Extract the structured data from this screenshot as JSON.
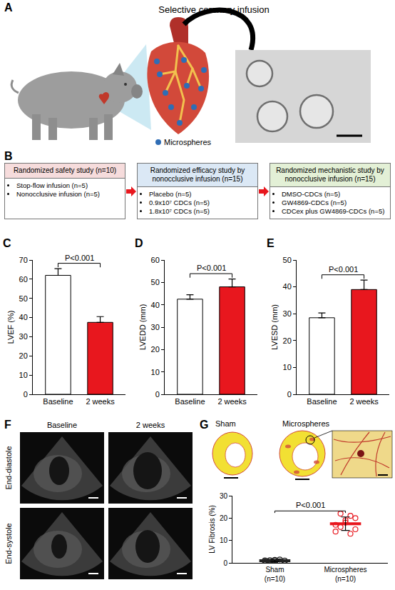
{
  "panels": {
    "A": {
      "label": "A",
      "title": "Selective coronary infusion",
      "legend": "Microspheres"
    },
    "B": {
      "label": "B",
      "boxes": [
        {
          "title": "Randomized safety study (n=10)",
          "items": [
            "Stop-flow infusion (n=5)",
            "Nonocclusive infusion (n=5)"
          ]
        },
        {
          "title": "Randomized efficacy study by nonocclusive infusion (n=15)",
          "items": [
            "Placebo (n=5)",
            "0.9x10⁷ CDCs (n=5)",
            "1.8x10⁷ CDCs (n=5)"
          ]
        },
        {
          "title": "Randomized mechanistic study by nonocclusive infusion (n=15)",
          "items": [
            "DMSO-CDCs (n=5)",
            "GW4869-CDCs (n=5)",
            "CDCex plus GW4869-CDCs (n=5)"
          ]
        }
      ]
    },
    "F": {
      "label": "F",
      "columns": [
        "Baseline",
        "2 weeks"
      ],
      "rows": [
        "End-diastole",
        "End-systole"
      ]
    },
    "G": {
      "images": [
        "Sham",
        "Microspheres"
      ]
    }
  },
  "chart_data": [
    {
      "label": "C",
      "type": "bar",
      "categories": [
        "Baseline",
        "2 weeks"
      ],
      "values": [
        62,
        37.5
      ],
      "errors": [
        3.5,
        3
      ],
      "colors": [
        "#ffffff",
        "#e8171e"
      ],
      "ylabel": "LVEF (%)",
      "ylim": [
        0,
        70
      ],
      "yticks": [
        0,
        10,
        20,
        30,
        40,
        50,
        60,
        70
      ],
      "grid": false,
      "annotation": "P<0.001"
    },
    {
      "label": "D",
      "type": "bar",
      "categories": [
        "Baseline",
        "2 weeks"
      ],
      "values": [
        42.5,
        48
      ],
      "errors": [
        2,
        3.5
      ],
      "colors": [
        "#ffffff",
        "#e8171e"
      ],
      "ylabel": "LVEDD (mm)",
      "ylim": [
        0,
        60
      ],
      "yticks": [
        0,
        10,
        20,
        30,
        40,
        50,
        60
      ],
      "grid": false,
      "annotation": "P<0.001"
    },
    {
      "label": "E",
      "type": "bar",
      "categories": [
        "Baseline",
        "2 weeks"
      ],
      "values": [
        28.5,
        39
      ],
      "errors": [
        1.8,
        3.5
      ],
      "colors": [
        "#ffffff",
        "#e8171e"
      ],
      "ylabel": "LVESD (mm)",
      "ylim": [
        0,
        50
      ],
      "yticks": [
        0,
        10,
        20,
        30,
        40,
        50
      ],
      "grid": false,
      "annotation": "P<0.001"
    },
    {
      "label": "G",
      "type": "dot",
      "categories": [
        "Sham\n(n=10)",
        "Microspheres\n(n=10)"
      ],
      "points": [
        [
          0.6,
          1.2,
          0.9,
          1.5,
          0.4,
          1.1,
          0.8,
          1.3,
          0.7,
          1.0
        ],
        [
          14,
          16,
          19,
          21,
          15,
          17,
          22,
          18,
          13,
          20
        ]
      ],
      "means": [
        0.95,
        17.5
      ],
      "errors": [
        0.4,
        3.0
      ],
      "colors": [
        "#222222",
        "#e8171e"
      ],
      "marker": "circle-open",
      "ylabel": "LV Fibrosis (%)",
      "ylim": [
        0,
        30
      ],
      "yticks": [
        0,
        10,
        20,
        30
      ],
      "grid": false,
      "annotation": "P<0.001"
    }
  ]
}
